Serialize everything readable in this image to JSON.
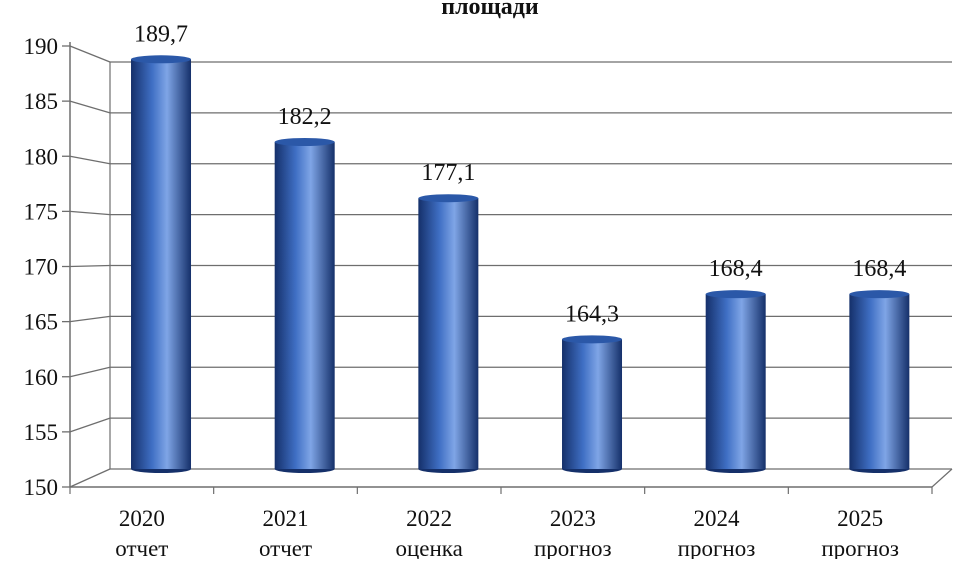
{
  "chart_data": {
    "type": "bar",
    "title": "площади",
    "categories": [
      {
        "year": "2020",
        "status": "отчет"
      },
      {
        "year": "2021",
        "status": "отчет"
      },
      {
        "year": "2022",
        "status": "оценка"
      },
      {
        "year": "2023",
        "status": "прогноз"
      },
      {
        "year": "2024",
        "status": "прогноз"
      },
      {
        "year": "2025",
        "status": "прогноз"
      }
    ],
    "values": [
      189.7,
      182.2,
      177.1,
      164.3,
      168.4,
      168.4
    ],
    "value_labels": [
      "189,7",
      "182,2",
      "177,1",
      "164,3",
      "168,4",
      "168,4"
    ],
    "ylim": [
      150,
      190
    ],
    "yticks": [
      "150",
      "155",
      "160",
      "165",
      "170",
      "175",
      "180",
      "185",
      "190"
    ],
    "grid": true,
    "legend": "none",
    "bar_style": "3d-cylinder",
    "colors": {
      "bar_dark": "#15306a",
      "bar_mid": "#3f6fc4",
      "bar_light": "#7fa5e6",
      "bar_top": "#2b58a8",
      "grid": "#6e6e6e",
      "axis": "#6e6e6e"
    }
  }
}
